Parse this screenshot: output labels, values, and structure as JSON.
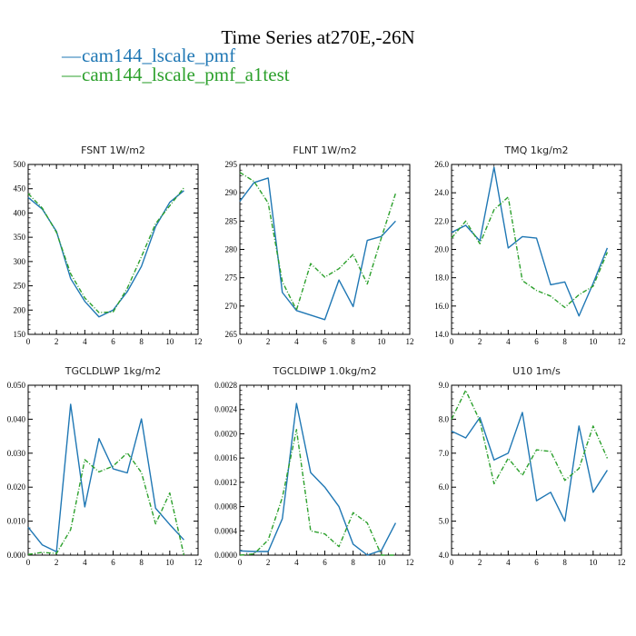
{
  "figure": {
    "title": "Time Series at270E,-26N",
    "colors": {
      "series1": "#1f77b4",
      "series2": "#2ca02c"
    },
    "legend": [
      {
        "name": "cam144_lscale_pmf",
        "color": "#1f77b4",
        "style": "solid",
        "symbol": "—"
      },
      {
        "name": "cam144_lscale_pmf_a1test",
        "color": "#2ca02c",
        "style": "dashed",
        "symbol": "—"
      }
    ]
  },
  "chart_data": [
    {
      "type": "line",
      "title": "FSNT   1W/m2",
      "xlim": [
        0,
        12
      ],
      "ylim": [
        150,
        500
      ],
      "xticks": [
        0,
        2,
        4,
        6,
        8,
        10,
        12
      ],
      "xtick_labels": [
        "0",
        "2",
        "4",
        "6",
        "8",
        "10",
        "12"
      ],
      "yticks": [
        150,
        200,
        250,
        300,
        350,
        400,
        450,
        500
      ],
      "ytick_labels": [
        "150",
        "200",
        "250",
        "300",
        "350",
        "400",
        "450",
        "500"
      ],
      "x": [
        0,
        1,
        2,
        3,
        4,
        5,
        6,
        7,
        8,
        9,
        10,
        11
      ],
      "series": [
        {
          "name": "cam144_lscale_pmf",
          "values": [
            432,
            408,
            362,
            265,
            218,
            186,
            200,
            238,
            290,
            372,
            422,
            446
          ]
        },
        {
          "name": "cam144_lscale_pmf_a1test",
          "values": [
            440,
            410,
            360,
            275,
            225,
            195,
            196,
            245,
            310,
            378,
            415,
            452
          ]
        }
      ]
    },
    {
      "type": "line",
      "title": "FLNT   1W/m2",
      "xlim": [
        0,
        12
      ],
      "ylim": [
        265,
        295
      ],
      "xticks": [
        0,
        2,
        4,
        6,
        8,
        10,
        12
      ],
      "xtick_labels": [
        "0",
        "2",
        "4",
        "6",
        "8",
        "10",
        "12"
      ],
      "yticks": [
        265,
        270,
        275,
        280,
        285,
        290,
        295
      ],
      "ytick_labels": [
        "265",
        "270",
        "275",
        "280",
        "285",
        "290",
        "295"
      ],
      "x": [
        0,
        1,
        2,
        3,
        4,
        5,
        6,
        7,
        8,
        9,
        10,
        11
      ],
      "series": [
        {
          "name": "cam144_lscale_pmf",
          "values": [
            288.5,
            291.8,
            292.6,
            272.4,
            269.2,
            268.4,
            267.6,
            274.6,
            269.9,
            281.6,
            282.3,
            285.0
          ]
        },
        {
          "name": "cam144_lscale_pmf_a1test",
          "values": [
            293.6,
            292.0,
            288.2,
            274.3,
            269.3,
            277.5,
            275.1,
            276.6,
            279.1,
            273.9,
            282.1,
            289.9
          ]
        }
      ]
    },
    {
      "type": "line",
      "title": "TMQ   1kg/m2",
      "xlim": [
        0,
        12
      ],
      "ylim": [
        14,
        26
      ],
      "xticks": [
        0,
        2,
        4,
        6,
        8,
        10,
        12
      ],
      "xtick_labels": [
        "0",
        "2",
        "4",
        "6",
        "8",
        "10",
        "12"
      ],
      "yticks": [
        14,
        16,
        18,
        20,
        22,
        24,
        26
      ],
      "ytick_labels": [
        "14.0",
        "16.0",
        "18.0",
        "20.0",
        "22.0",
        "24.0",
        "26.0"
      ],
      "x": [
        0,
        1,
        2,
        3,
        4,
        5,
        6,
        7,
        8,
        9,
        10,
        11
      ],
      "series": [
        {
          "name": "cam144_lscale_pmf",
          "values": [
            21.2,
            21.7,
            20.6,
            25.8,
            20.1,
            20.9,
            20.8,
            17.5,
            17.7,
            15.3,
            17.6,
            20.1
          ]
        },
        {
          "name": "cam144_lscale_pmf_a1test",
          "values": [
            20.8,
            22.0,
            20.4,
            22.8,
            23.7,
            17.8,
            17.1,
            16.7,
            15.9,
            16.8,
            17.4,
            19.8
          ]
        }
      ]
    },
    {
      "type": "line",
      "title": "TGCLDLWP   1kg/m2",
      "xlim": [
        0,
        12
      ],
      "ylim": [
        0,
        0.05
      ],
      "xticks": [
        0,
        2,
        4,
        6,
        8,
        10,
        12
      ],
      "xtick_labels": [
        "0",
        "2",
        "4",
        "6",
        "8",
        "10",
        "12"
      ],
      "yticks": [
        0,
        0.01,
        0.02,
        0.03,
        0.04,
        0.05
      ],
      "ytick_labels": [
        "0.000",
        "0.010",
        "0.020",
        "0.030",
        "0.040",
        "0.050"
      ],
      "x": [
        0,
        1,
        2,
        3,
        4,
        5,
        6,
        7,
        8,
        9,
        10,
        11
      ],
      "series": [
        {
          "name": "cam144_lscale_pmf",
          "values": [
            0.0082,
            0.003,
            0.001,
            0.0444,
            0.0142,
            0.0343,
            0.0254,
            0.0242,
            0.0401,
            0.0138,
            0.009,
            0.0045
          ]
        },
        {
          "name": "cam144_lscale_pmf_a1test",
          "values": [
            0.0002,
            0.0008,
            0.0005,
            0.0075,
            0.0281,
            0.0245,
            0.0262,
            0.0301,
            0.0243,
            0.0092,
            0.0183,
            0.0
          ]
        }
      ]
    },
    {
      "type": "line",
      "title": "TGCLDIWP   1.0kg/m2",
      "xlim": [
        0,
        12
      ],
      "ylim": [
        0,
        0.0028
      ],
      "xticks": [
        0,
        2,
        4,
        6,
        8,
        10,
        12
      ],
      "xtick_labels": [
        "0",
        "2",
        "4",
        "6",
        "8",
        "10",
        "12"
      ],
      "yticks": [
        0,
        0.0004,
        0.0008,
        0.0012,
        0.0016,
        0.002,
        0.0024,
        0.0028
      ],
      "ytick_labels": [
        "0.0000",
        "0.0004",
        "0.0008",
        "0.0012",
        "0.0016",
        "0.0020",
        "0.0024",
        "0.0028"
      ],
      "x": [
        0,
        1,
        2,
        3,
        4,
        5,
        6,
        7,
        8,
        9,
        10,
        11
      ],
      "series": [
        {
          "name": "cam144_lscale_pmf",
          "values": [
            7e-05,
            6e-05,
            6e-05,
            0.0006,
            0.0025,
            0.00136,
            0.00112,
            0.0008,
            0.00018,
            0.0,
            8e-05,
            0.00053
          ]
        },
        {
          "name": "cam144_lscale_pmf_a1test",
          "values": [
            0.0,
            2e-05,
            0.00025,
            0.00095,
            0.00207,
            0.0004,
            0.00035,
            0.00014,
            0.0007,
            0.00053,
            0.0,
            0.0
          ]
        }
      ]
    },
    {
      "type": "line",
      "title": "U10   1m/s",
      "xlim": [
        0,
        12
      ],
      "ylim": [
        4,
        9
      ],
      "xticks": [
        0,
        2,
        4,
        6,
        8,
        10,
        12
      ],
      "xtick_labels": [
        "0",
        "2",
        "4",
        "6",
        "8",
        "10",
        "12"
      ],
      "yticks": [
        4,
        5,
        6,
        7,
        8,
        9
      ],
      "ytick_labels": [
        "4.0",
        "5.0",
        "6.0",
        "7.0",
        "8.0",
        "9.0"
      ],
      "x": [
        0,
        1,
        2,
        3,
        4,
        5,
        6,
        7,
        8,
        9,
        10,
        11
      ],
      "series": [
        {
          "name": "cam144_lscale_pmf",
          "values": [
            7.65,
            7.45,
            8.05,
            6.8,
            7.0,
            8.2,
            5.6,
            5.85,
            5.0,
            7.8,
            5.85,
            6.5
          ]
        },
        {
          "name": "cam144_lscale_pmf_a1test",
          "values": [
            8.0,
            8.85,
            7.95,
            6.1,
            6.85,
            6.35,
            7.1,
            7.05,
            6.2,
            6.55,
            7.8,
            6.85
          ]
        }
      ]
    }
  ]
}
